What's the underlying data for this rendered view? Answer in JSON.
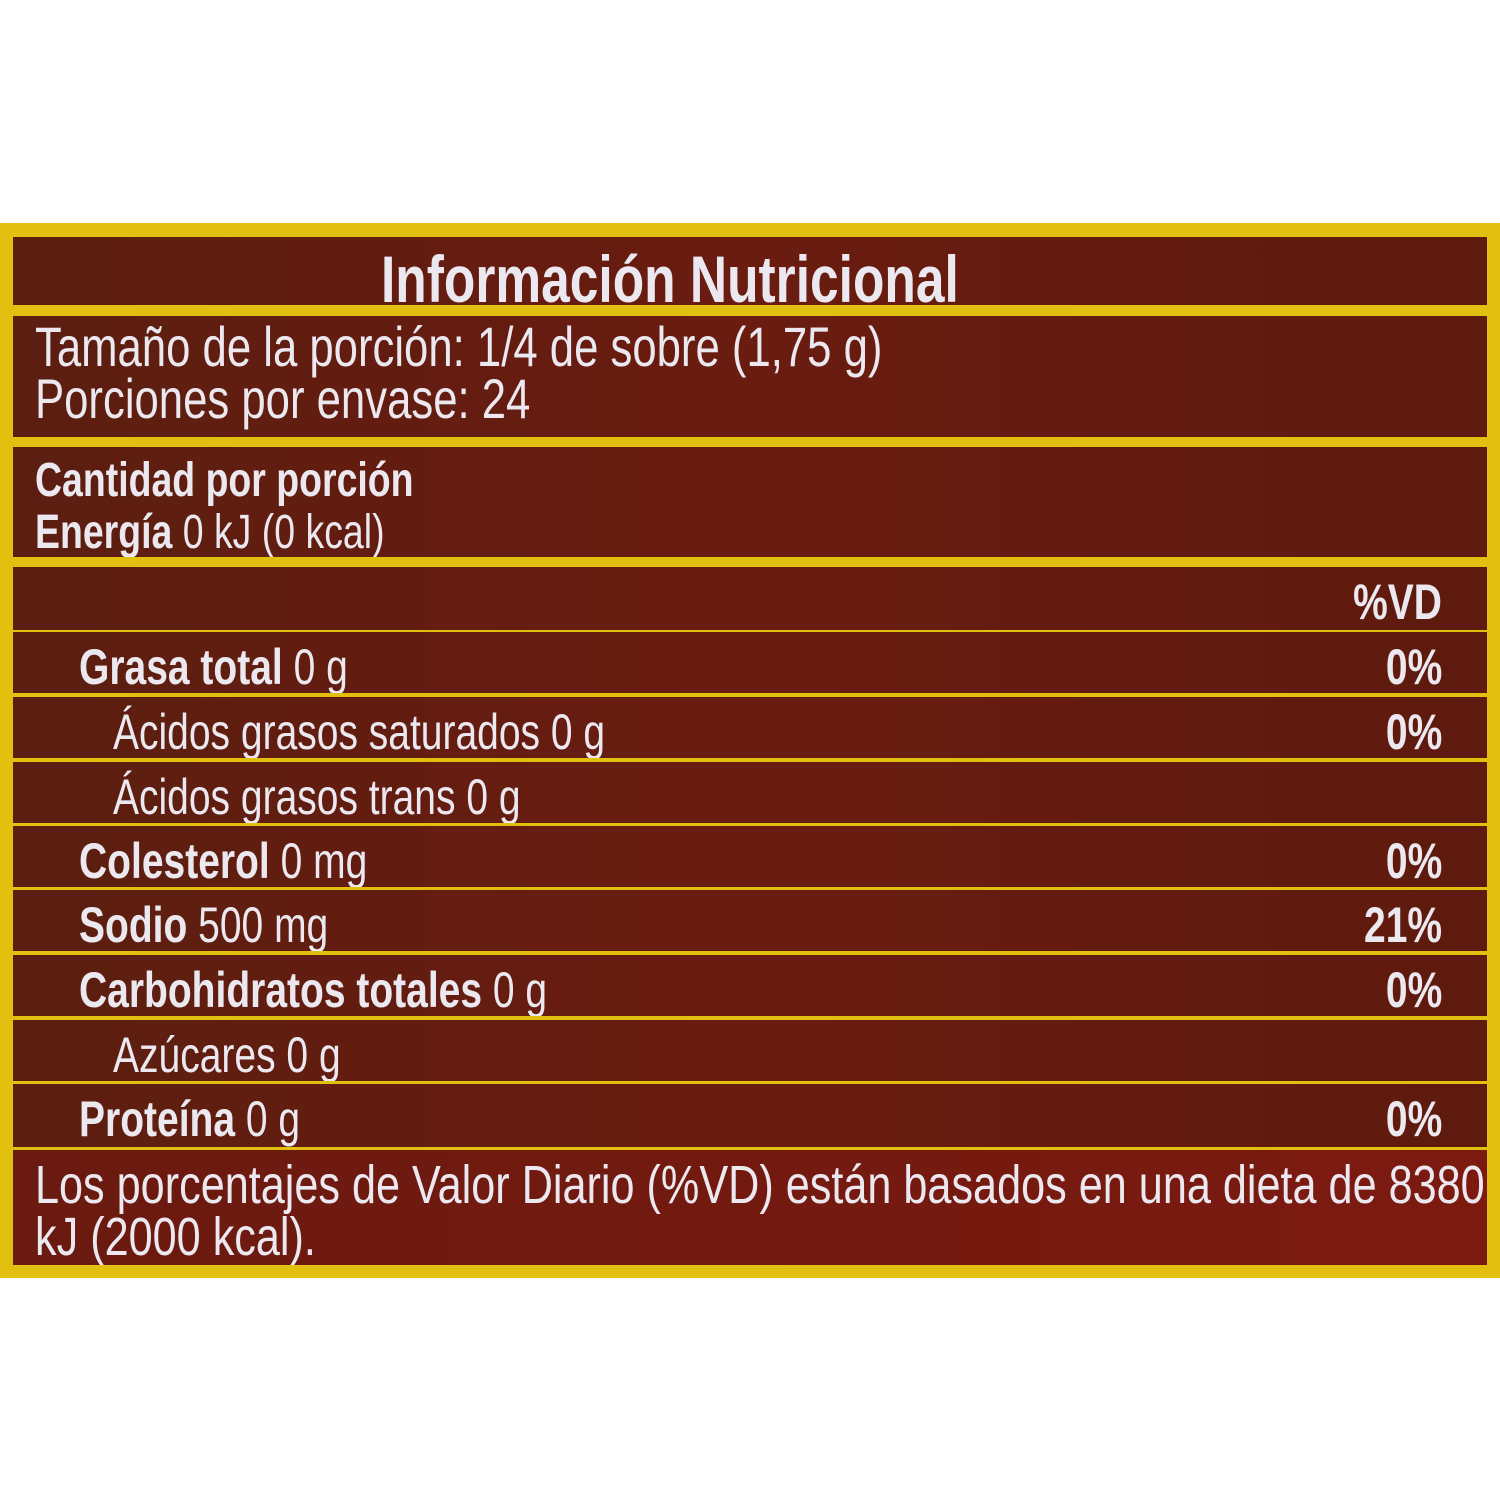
{
  "title": "Información Nutricional",
  "serving": {
    "size": "Tamaño de la porción: 1/4 de sobre (1,75 g)",
    "per_container": "Porciones por envase: 24"
  },
  "amount": {
    "heading": "Cantidad por porción",
    "energy_label": "Energía",
    "energy_value": "0 kJ (0 kcal)"
  },
  "dv_header": "%VD",
  "rows": [
    {
      "label": "Grasa total",
      "value": "0 g",
      "dv": "0%",
      "bold": true
    },
    {
      "label": "Ácidos grasos saturados",
      "value": "0 g",
      "dv": "0%",
      "bold": false
    },
    {
      "label": "Ácidos grasos trans",
      "value": "0 g",
      "dv": "",
      "bold": false
    },
    {
      "label": "Colesterol",
      "value": "0 mg",
      "dv": "0%",
      "bold": true
    },
    {
      "label": "Sodio",
      "value": "500 mg",
      "dv": "21%",
      "bold": true
    },
    {
      "label": "Carbohidratos totales",
      "value": "0 g",
      "dv": "0%",
      "bold": true
    },
    {
      "label": "Azúcares",
      "value": "0 g",
      "dv": "",
      "bold": false
    },
    {
      "label": "Proteína",
      "value": "0 g",
      "dv": "0%",
      "bold": true
    }
  ],
  "footnote": {
    "line1": "Los porcentajes de Valor Diario (%VD) están basados en una dieta de 8380",
    "line2": "kJ (2000 kcal)."
  },
  "colors": {
    "border": "#e2c010",
    "background": "#5b1e10",
    "text": "#ece8f0"
  }
}
